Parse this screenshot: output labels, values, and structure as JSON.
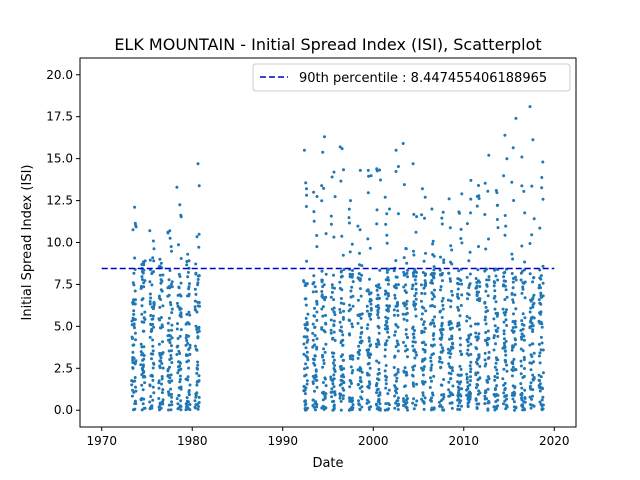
{
  "chart_data": {
    "type": "scatter",
    "title": "ELK MOUNTAIN - Initial Spread Index (ISI), Scatterplot",
    "xlabel": "Date",
    "ylabel": "Initial Spread Index (ISI)",
    "xlim": [
      1967.6,
      2022.4
    ],
    "ylim": [
      -1.0,
      21.0
    ],
    "x_ticks": [
      1970,
      1980,
      1990,
      2000,
      2010,
      2020
    ],
    "y_ticks": [
      0.0,
      2.5,
      5.0,
      7.5,
      10.0,
      12.5,
      15.0,
      17.5,
      20.0
    ],
    "y_tick_labels": [
      "0.0",
      "2.5",
      "5.0",
      "7.5",
      "10.0",
      "12.5",
      "15.0",
      "17.5",
      "20.0"
    ],
    "grid": false,
    "legend_position": "top-right",
    "point_color": "#1f77b4",
    "reference_line": {
      "label": "90th percentile : 8.447455406188965",
      "y": 8.447455406188965,
      "x_range": [
        1970,
        2020
      ],
      "color": "#0000cc",
      "style": "dashed"
    },
    "seasons": [
      {
        "year": 1973,
        "max": 12.1
      },
      {
        "year": 1974,
        "max": 8.9
      },
      {
        "year": 1975,
        "max": 10.7
      },
      {
        "year": 1976,
        "max": 9.0
      },
      {
        "year": 1977,
        "max": 10.7
      },
      {
        "year": 1978,
        "max": 13.3
      },
      {
        "year": 1979,
        "max": 9.3
      },
      {
        "year": 1980,
        "max": 14.7
      },
      {
        "year": 1992,
        "max": 15.5
      },
      {
        "year": 1993,
        "max": 13.0
      },
      {
        "year": 1994,
        "max": 16.3
      },
      {
        "year": 1995,
        "max": 14.2
      },
      {
        "year": 1996,
        "max": 15.7
      },
      {
        "year": 1997,
        "max": 12.5
      },
      {
        "year": 1998,
        "max": 14.3
      },
      {
        "year": 1999,
        "max": 14.3
      },
      {
        "year": 2000,
        "max": 14.4
      },
      {
        "year": 2001,
        "max": 12.7
      },
      {
        "year": 2002,
        "max": 15.5
      },
      {
        "year": 2003,
        "max": 15.9
      },
      {
        "year": 2004,
        "max": 14.7
      },
      {
        "year": 2005,
        "max": 13.2
      },
      {
        "year": 2006,
        "max": 12.0
      },
      {
        "year": 2007,
        "max": 11.8
      },
      {
        "year": 2008,
        "max": 12.6
      },
      {
        "year": 2009,
        "max": 12.9
      },
      {
        "year": 2010,
        "max": 13.7
      },
      {
        "year": 2011,
        "max": 13.4
      },
      {
        "year": 2012,
        "max": 15.2
      },
      {
        "year": 2013,
        "max": 13.1
      },
      {
        "year": 2014,
        "max": 16.4
      },
      {
        "year": 2015,
        "max": 17.4
      },
      {
        "year": 2016,
        "max": 15.1
      },
      {
        "year": 2017,
        "max": 18.1
      },
      {
        "year": 2018,
        "max": 14.8
      }
    ]
  }
}
